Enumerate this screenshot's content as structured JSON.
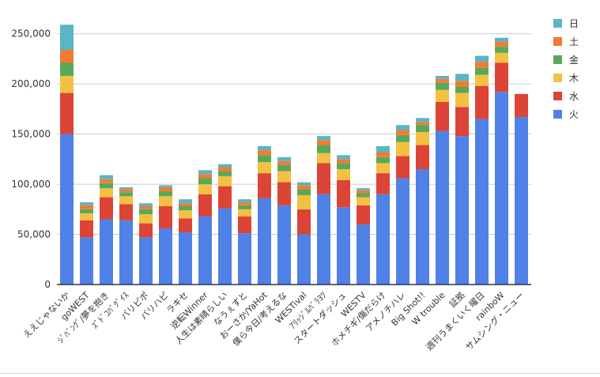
{
  "chart_data": {
    "type": "bar",
    "stacked": true,
    "categories": [
      "ええじゃないか",
      "goWEST",
      "ｼﾞﾊﾞﾝｸﾞ/夢を抱き",
      "ｽﾞﾄﾞｺﾊﾞｸﾞｲｽ",
      "バリピポ",
      "バリハピ",
      "ラキセ",
      "逆転Winner",
      "人生は素晴らしい",
      "なうぇすと",
      "おーさか/YaHot",
      "僕ら今日/考えるな",
      "WESTival",
      "ｱﾘｯｼﾞﾙﾊﾞﾗﾖﾂ",
      "スタートダッシュ",
      "WESTV",
      "ホメチギ/傷だらけ",
      "アメノチハレ",
      "Big Shot!!",
      "W trouble",
      "証拠",
      "週刊うまくいく曜日",
      "rainboW",
      "サムシング・ニュー"
    ],
    "series": [
      {
        "name": "火",
        "color": "#4f81e6",
        "values": [
          150000,
          47000,
          65000,
          64000,
          47000,
          56000,
          52000,
          68000,
          76000,
          51000,
          86000,
          79000,
          50000,
          90000,
          77000,
          60000,
          90000,
          106000,
          115000,
          153000,
          148000,
          165000,
          192000,
          167000
        ]
      },
      {
        "name": "水",
        "color": "#db4437",
        "values": [
          41000,
          17000,
          22000,
          16000,
          14000,
          22000,
          14000,
          22000,
          22000,
          17000,
          25000,
          23000,
          25000,
          31000,
          27000,
          19000,
          21000,
          22000,
          24000,
          29000,
          29000,
          33000,
          29000,
          23000
        ]
      },
      {
        "name": "木",
        "color": "#f4c042",
        "values": [
          17000,
          7000,
          9000,
          8000,
          9000,
          10000,
          8000,
          10000,
          10000,
          7000,
          11000,
          11000,
          14000,
          10000,
          11000,
          8000,
          10000,
          14000,
          13000,
          12000,
          14000,
          11000,
          10000,
          0
        ]
      },
      {
        "name": "金",
        "color": "#57a959",
        "values": [
          13000,
          4000,
          5000,
          4000,
          5000,
          5000,
          4000,
          6000,
          5000,
          4000,
          7000,
          6000,
          6000,
          8000,
          6000,
          4000,
          6000,
          7000,
          7000,
          7000,
          6000,
          7000,
          6000,
          0
        ]
      },
      {
        "name": "土",
        "color": "#f27b33",
        "values": [
          13000,
          4000,
          4000,
          3000,
          3000,
          4000,
          3000,
          4000,
          4000,
          3000,
          5000,
          4000,
          4000,
          5000,
          4000,
          3000,
          5000,
          5000,
          3000,
          4000,
          6000,
          6000,
          5000,
          0
        ]
      },
      {
        "name": "日",
        "color": "#5ab5c5",
        "values": [
          25000,
          3000,
          4000,
          2000,
          3000,
          2000,
          4000,
          4000,
          3000,
          3000,
          4000,
          4000,
          3000,
          4000,
          4000,
          2000,
          6000,
          5000,
          4000,
          3000,
          7000,
          6000,
          4000,
          0
        ]
      }
    ],
    "ylim": [
      0,
      260000
    ],
    "yticks": [
      "0",
      "50,000",
      "100,000",
      "150,000",
      "200,000",
      "250,000"
    ],
    "ytick_values": [
      0,
      50000,
      100000,
      150000,
      200000,
      250000
    ],
    "grid": true,
    "legend_position": "right"
  },
  "colors": {
    "grid": "#cccccc",
    "axis": "#333333",
    "text": "#333333"
  }
}
